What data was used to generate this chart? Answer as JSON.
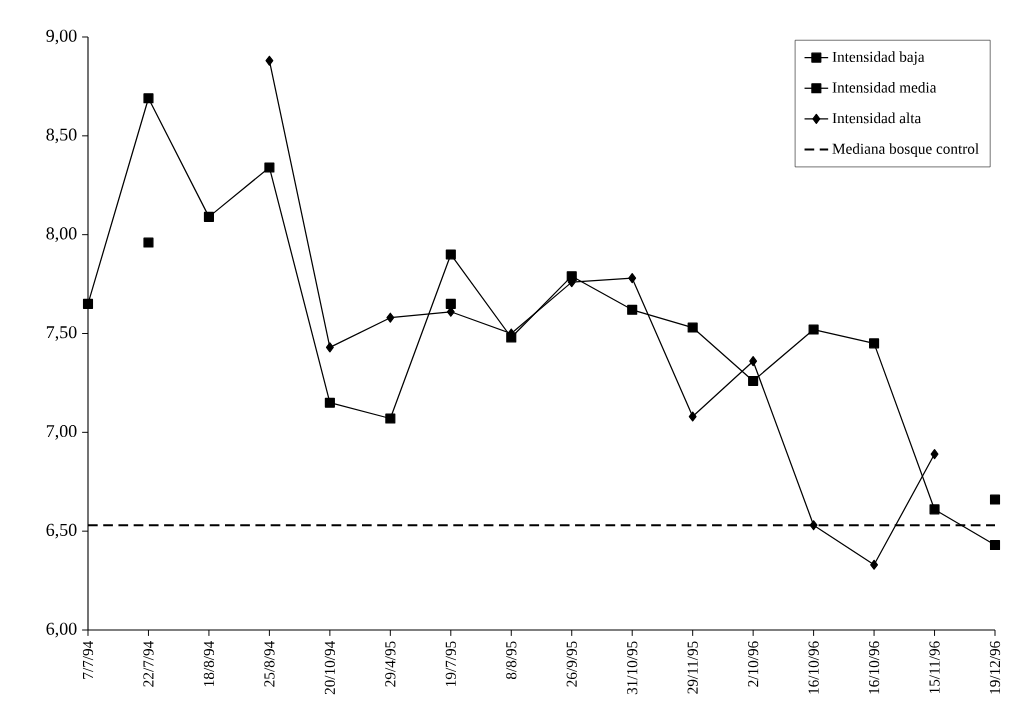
{
  "chart_data": {
    "type": "line",
    "categories": [
      "7/7/94",
      "22/7/94",
      "18/8/94",
      "25/8/94",
      "20/10/94",
      "29/4/95",
      "19/7/95",
      "8/8/95",
      "26/9/95",
      "31/10/95",
      "29/11/95",
      "2/10/96",
      "16/10/96",
      "16/10/96",
      "15/11/96",
      "19/12/96"
    ],
    "series": [
      {
        "name": "Intensidad baja",
        "color": "#000000",
        "marker": "square",
        "values": [
          null,
          7.96,
          null,
          null,
          null,
          null,
          7.65,
          null,
          null,
          null,
          null,
          null,
          null,
          null,
          null,
          6.66
        ]
      },
      {
        "name": "Intensidad media",
        "color": "#000000",
        "marker": "square",
        "values": [
          7.65,
          8.69,
          8.09,
          8.34,
          7.15,
          7.07,
          7.9,
          7.48,
          7.79,
          7.62,
          7.53,
          7.26,
          7.52,
          7.45,
          6.61,
          6.43
        ]
      },
      {
        "name": "Intensidad alta",
        "color": "#000000",
        "marker": "diamond",
        "values": [
          null,
          null,
          null,
          8.88,
          7.43,
          7.58,
          7.61,
          7.5,
          7.76,
          7.78,
          7.08,
          7.36,
          6.53,
          6.33,
          6.89,
          null
        ]
      }
    ],
    "ref_lines": [
      {
        "axis": "y",
        "value": 6.53,
        "label": "Mediana bosque control",
        "color": "#000000",
        "line_style": "dashed"
      }
    ],
    "ylim": [
      6,
      9
    ],
    "yticks": [
      {
        "value": 6,
        "label": "6,00"
      },
      {
        "value": 6.5,
        "label": "6,50"
      },
      {
        "value": 7,
        "label": "7,00"
      },
      {
        "value": 7.5,
        "label": "7,50"
      },
      {
        "value": 8,
        "label": "8,00"
      },
      {
        "value": 8.5,
        "label": "8,50"
      },
      {
        "value": 9,
        "label": "9,00"
      }
    ],
    "grid": false,
    "legend": "top right",
    "line_style": "solid"
  }
}
